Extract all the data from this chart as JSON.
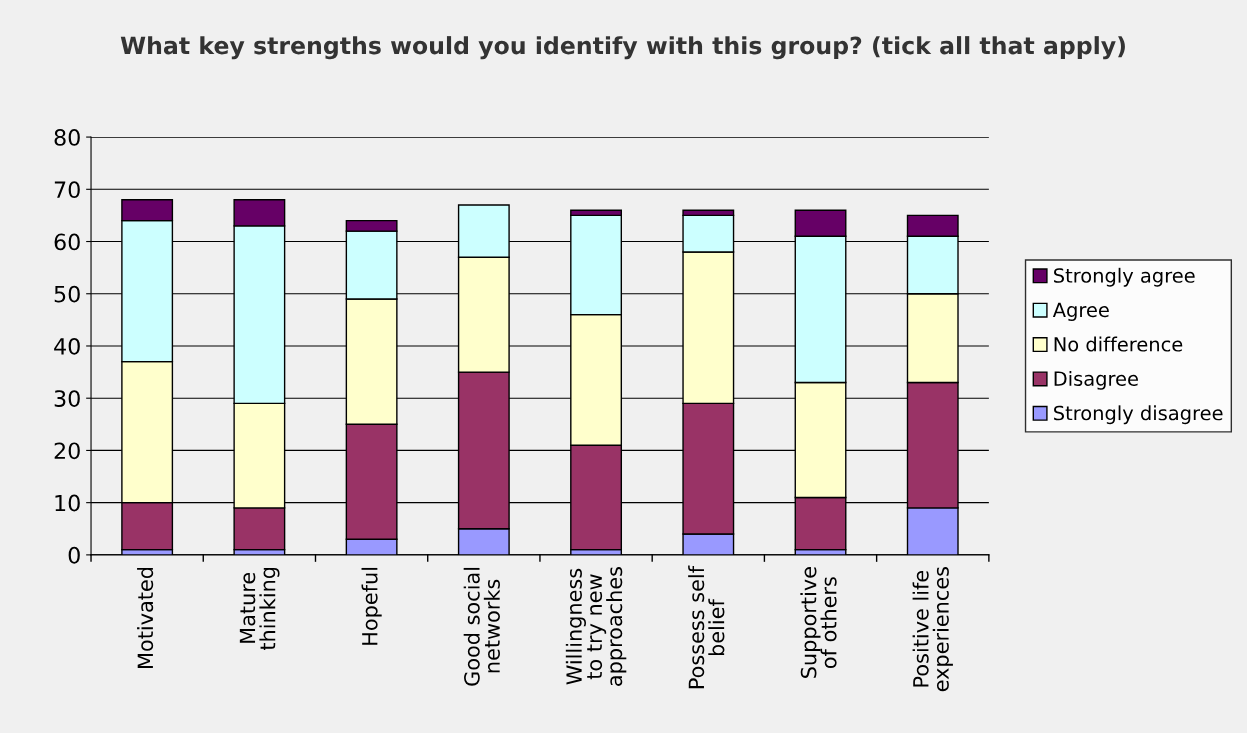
{
  "chart_data": {
    "type": "bar",
    "stacked": true,
    "title": "What key strengths would you identify with this group? (tick all that apply)",
    "categories": [
      "Motivated",
      "Mature\nthinking",
      "Hopeful",
      "Good social\nnetworks",
      "Willingness\nto try new\napproaches",
      "Possess self\nbelief",
      "Supportive\nof others",
      "Positive life\nexperiences"
    ],
    "series": [
      {
        "name": "Strongly disagree",
        "color": "#9999ff",
        "values": [
          1,
          1,
          3,
          5,
          1,
          4,
          1,
          9
        ]
      },
      {
        "name": "Disagree",
        "color": "#993366",
        "values": [
          9,
          8,
          22,
          30,
          20,
          25,
          10,
          24
        ]
      },
      {
        "name": "No difference",
        "color": "#ffffcc",
        "values": [
          27,
          20,
          24,
          22,
          25,
          29,
          22,
          17
        ]
      },
      {
        "name": "Agree",
        "color": "#ccffff",
        "values": [
          27,
          34,
          13,
          10,
          19,
          7,
          28,
          11
        ]
      },
      {
        "name": "Strongly agree",
        "color": "#660066",
        "values": [
          4,
          5,
          2,
          null,
          1,
          1,
          5,
          4
        ]
      }
    ],
    "ylim": [
      0,
      80
    ],
    "yticks": [
      0,
      10,
      20,
      30,
      40,
      50,
      60,
      70,
      80
    ],
    "grid": "y",
    "legend": "right"
  }
}
